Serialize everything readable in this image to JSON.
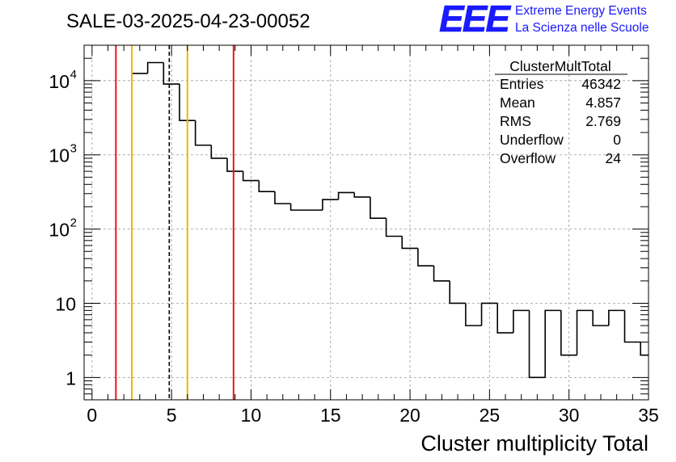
{
  "chart_data": {
    "type": "histogram",
    "title": "SALE-03-2025-04-23-00052",
    "xlabel": "Cluster multiplicity Total",
    "ylabel": "",
    "xlim": [
      -0.5,
      35
    ],
    "ylim": [
      0.5,
      30000
    ],
    "yscale": "log",
    "grid": true,
    "x_ticks": [
      0,
      5,
      10,
      15,
      20,
      25,
      30,
      35
    ],
    "y_ticks": [
      {
        "value": 1,
        "base": "1",
        "exp": ""
      },
      {
        "value": 10,
        "base": "10",
        "exp": ""
      },
      {
        "value": 100,
        "base": "10",
        "exp": "2"
      },
      {
        "value": 1000,
        "base": "10",
        "exp": "3"
      },
      {
        "value": 10000,
        "base": "10",
        "exp": "4"
      }
    ],
    "bin_width": 1,
    "bins": [
      {
        "low": 2.5,
        "count": 12500
      },
      {
        "low": 3.5,
        "count": 17500
      },
      {
        "low": 4.5,
        "count": 9000
      },
      {
        "low": 5.5,
        "count": 2900
      },
      {
        "low": 6.5,
        "count": 1350
      },
      {
        "low": 7.5,
        "count": 900
      },
      {
        "low": 8.5,
        "count": 600
      },
      {
        "low": 9.5,
        "count": 450
      },
      {
        "low": 10.5,
        "count": 320
      },
      {
        "low": 11.5,
        "count": 220
      },
      {
        "low": 12.5,
        "count": 180
      },
      {
        "low": 13.5,
        "count": 180
      },
      {
        "low": 14.5,
        "count": 250
      },
      {
        "low": 15.5,
        "count": 310
      },
      {
        "low": 16.5,
        "count": 270
      },
      {
        "low": 17.5,
        "count": 140
      },
      {
        "low": 18.5,
        "count": 80
      },
      {
        "low": 19.5,
        "count": 55
      },
      {
        "low": 20.5,
        "count": 32
      },
      {
        "low": 21.5,
        "count": 20
      },
      {
        "low": 22.5,
        "count": 10
      },
      {
        "low": 23.5,
        "count": 5
      },
      {
        "low": 24.5,
        "count": 10
      },
      {
        "low": 25.5,
        "count": 4
      },
      {
        "low": 26.5,
        "count": 8
      },
      {
        "low": 27.5,
        "count": 1
      },
      {
        "low": 28.5,
        "count": 8
      },
      {
        "low": 29.5,
        "count": 2
      },
      {
        "low": 30.5,
        "count": 8
      },
      {
        "low": 31.5,
        "count": 5
      },
      {
        "low": 32.5,
        "count": 8
      },
      {
        "low": 33.5,
        "count": 3
      },
      {
        "low": 34.5,
        "count": 2
      }
    ],
    "vertical_lines": [
      {
        "x": 1.5,
        "color": "#e8141a",
        "style": "solid"
      },
      {
        "x": 2.5,
        "color": "#f2b600",
        "style": "solid"
      },
      {
        "x": 4.857,
        "color": "#000000",
        "style": "dashed"
      },
      {
        "x": 6.0,
        "color": "#f2b600",
        "style": "solid"
      },
      {
        "x": 8.9,
        "color": "#e8141a",
        "style": "solid"
      }
    ],
    "stats": {
      "name": "ClusterMultTotal",
      "rows": [
        {
          "label": "Entries",
          "value": "46342"
        },
        {
          "label": "Mean",
          "value": "4.857"
        },
        {
          "label": "RMS",
          "value": "2.769"
        },
        {
          "label": "Underflow",
          "value": "0"
        },
        {
          "label": "Overflow",
          "value": "24"
        }
      ]
    }
  },
  "logo": {
    "mark": "EEE",
    "line1": "Extreme Energy Events",
    "line2": "La Scienza nelle Scuole",
    "color": "#1a1aff"
  }
}
